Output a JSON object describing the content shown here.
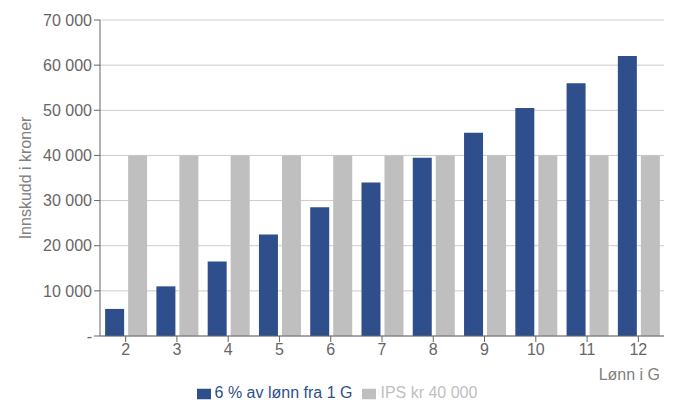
{
  "chart_data": {
    "type": "bar",
    "xlabel": "Lønn i G",
    "ylabel": "Innskudd i kroner",
    "categories": [
      2,
      3,
      4,
      5,
      6,
      7,
      8,
      9,
      10,
      11,
      12
    ],
    "series": [
      {
        "name": "6 % av lønn fra 1 G",
        "color": "#2E4F8C",
        "values": [
          6000,
          11000,
          16500,
          22500,
          28500,
          34000,
          39500,
          45000,
          50500,
          56000,
          62000
        ]
      },
      {
        "name": "IPS kr 40 000",
        "color": "#BFBFBF",
        "values": [
          40000,
          40000,
          40000,
          40000,
          40000,
          40000,
          40000,
          40000,
          40000,
          40000,
          40000
        ]
      }
    ],
    "ylim": [
      0,
      70000
    ],
    "yticks": [
      {
        "value": 0,
        "label": "-"
      },
      {
        "value": 10000,
        "label": "10 000"
      },
      {
        "value": 20000,
        "label": "20 000"
      },
      {
        "value": 30000,
        "label": "30 000"
      },
      {
        "value": 40000,
        "label": "40 000"
      },
      {
        "value": 50000,
        "label": "50 000"
      },
      {
        "value": 60000,
        "label": "60 000"
      },
      {
        "value": 70000,
        "label": "70 000"
      }
    ],
    "grid": true,
    "legend": "bottom"
  }
}
